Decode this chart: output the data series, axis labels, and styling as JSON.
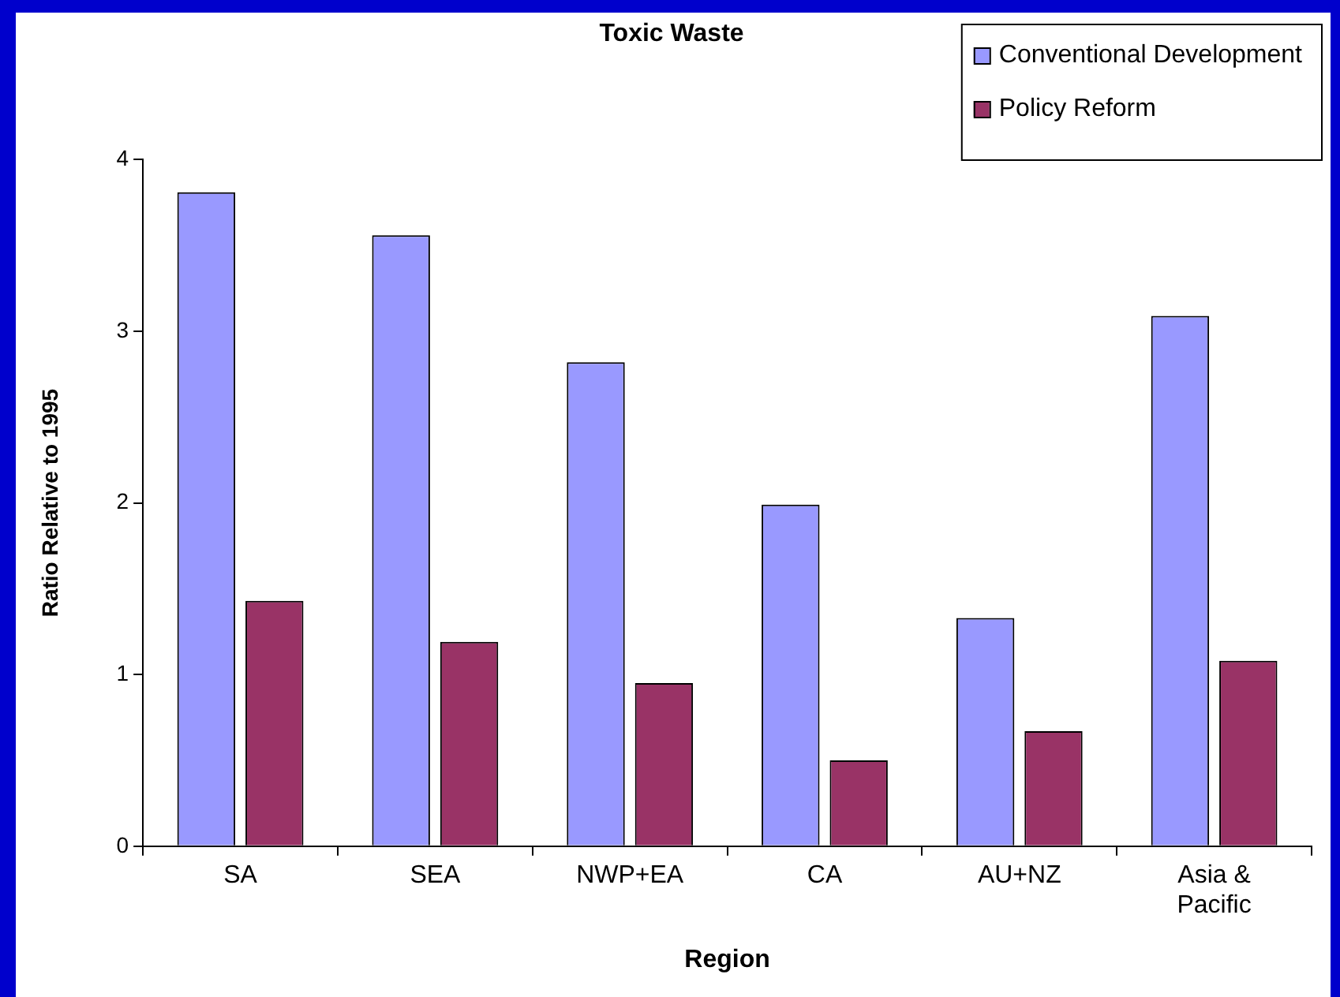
{
  "chart_data": {
    "type": "bar",
    "title": "Toxic Waste",
    "xlabel": "Region",
    "ylabel": "Ratio Relative to 1995",
    "categories": [
      "SA",
      "SEA",
      "NWP+EA",
      "CA",
      "AU+NZ",
      "Asia & Pacific"
    ],
    "series": [
      {
        "name": "Conventional Development",
        "color": "#9999ff",
        "values": [
          3.81,
          3.56,
          2.82,
          1.99,
          1.33,
          3.09
        ]
      },
      {
        "name": "Policy Reform",
        "color": "#993366",
        "values": [
          1.43,
          1.19,
          0.95,
          0.5,
          0.67,
          1.08
        ]
      }
    ],
    "ylim": [
      0,
      4
    ],
    "yticks": [
      0,
      1,
      2,
      3,
      4
    ],
    "grid": false,
    "legend": "top right"
  }
}
